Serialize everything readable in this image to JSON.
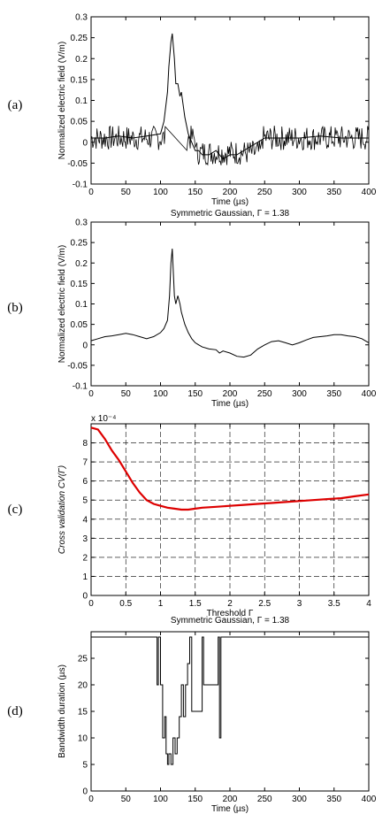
{
  "chart_data": [
    {
      "panel": "(a)",
      "type": "line",
      "title": "",
      "xlabel": "Time (µs)",
      "ylabel": "Normalized electric field (V/m)",
      "xlim": [
        0,
        400
      ],
      "ylim": [
        -0.1,
        0.3
      ],
      "xticks": [
        "0",
        "50",
        "100",
        "150",
        "200",
        "250",
        "300",
        "350",
        "400"
      ],
      "yticks": [
        "-0.1",
        "-0.05",
        "0",
        "0.05",
        "0.1",
        "0.15",
        "0.2",
        "0.25",
        "0.3"
      ],
      "color": "#000000",
      "noise_band": [
        -0.02,
        0.04
      ],
      "x": [
        0,
        20,
        40,
        60,
        80,
        100,
        105,
        110,
        112,
        115,
        117,
        120,
        122,
        125,
        128,
        130,
        135,
        140,
        145,
        150,
        155,
        160,
        170,
        180,
        190,
        200,
        210,
        220,
        230,
        240,
        250,
        270,
        300,
        330,
        360,
        400
      ],
      "values": [
        0.01,
        0.01,
        0.015,
        0.01,
        0.015,
        0.02,
        0.05,
        0.12,
        0.18,
        0.24,
        0.26,
        0.2,
        0.14,
        0.14,
        0.11,
        0.12,
        0.06,
        0.02,
        0.0,
        -0.02,
        -0.02,
        -0.03,
        -0.03,
        -0.02,
        -0.04,
        -0.03,
        -0.03,
        -0.02,
        -0.01,
        0.0,
        0.01,
        0.01,
        0.01,
        0.015,
        0.01,
        0.01
      ]
    },
    {
      "panel": "(b)",
      "type": "line",
      "title": "Symmetric Gaussian, Γ = 1.38",
      "xlabel": "Time (µs)",
      "ylabel": "Normalized electric field (V/m)",
      "xlim": [
        0,
        400
      ],
      "ylim": [
        -0.1,
        0.3
      ],
      "xticks": [
        "0",
        "50",
        "100",
        "150",
        "200",
        "250",
        "300",
        "350",
        "400"
      ],
      "yticks": [
        "-0.1",
        "-0.05",
        "0",
        "0.05",
        "0.1",
        "0.15",
        "0.2",
        "0.25",
        "0.3"
      ],
      "color": "#000000",
      "x": [
        0,
        10,
        20,
        30,
        40,
        50,
        60,
        70,
        80,
        90,
        100,
        105,
        110,
        113,
        115,
        117,
        120,
        122,
        125,
        128,
        130,
        135,
        140,
        145,
        150,
        155,
        160,
        170,
        180,
        185,
        190,
        200,
        210,
        220,
        230,
        240,
        250,
        260,
        270,
        280,
        290,
        300,
        310,
        320,
        330,
        340,
        350,
        360,
        370,
        380,
        390,
        400
      ],
      "values": [
        0.01,
        0.015,
        0.02,
        0.022,
        0.025,
        0.028,
        0.025,
        0.02,
        0.015,
        0.02,
        0.03,
        0.04,
        0.06,
        0.12,
        0.2,
        0.235,
        0.12,
        0.1,
        0.12,
        0.1,
        0.08,
        0.05,
        0.03,
        0.015,
        0.005,
        0.0,
        -0.005,
        -0.01,
        -0.012,
        -0.02,
        -0.015,
        -0.02,
        -0.028,
        -0.03,
        -0.025,
        -0.01,
        0.0,
        0.008,
        0.01,
        0.005,
        0.0,
        0.005,
        0.012,
        0.018,
        0.02,
        0.022,
        0.025,
        0.025,
        0.022,
        0.02,
        0.015,
        0.005
      ]
    },
    {
      "panel": "(c)",
      "type": "line",
      "title": "",
      "xlabel": "Threshold Γ",
      "ylabel": "Cross validation CV(Γ)",
      "y_scale_label": "x 10⁻⁴",
      "xlim": [
        0,
        4
      ],
      "ylim": [
        0,
        9
      ],
      "grid": true,
      "xticks": [
        "0",
        "0.5",
        "1",
        "1.5",
        "2",
        "2.5",
        "3",
        "3.5",
        "4"
      ],
      "yticks": [
        "0",
        "1",
        "2",
        "3",
        "4",
        "5",
        "6",
        "7",
        "8"
      ],
      "color": "#dd0000",
      "x": [
        0,
        0.1,
        0.2,
        0.3,
        0.4,
        0.5,
        0.6,
        0.7,
        0.8,
        0.9,
        1.0,
        1.1,
        1.2,
        1.3,
        1.4,
        1.5,
        1.6,
        1.8,
        2.0,
        2.2,
        2.4,
        2.6,
        2.8,
        3.0,
        3.2,
        3.4,
        3.6,
        3.8,
        4.0
      ],
      "values": [
        8.8,
        8.7,
        8.2,
        7.6,
        7.1,
        6.5,
        5.9,
        5.4,
        5.0,
        4.8,
        4.7,
        4.6,
        4.55,
        4.5,
        4.5,
        4.55,
        4.6,
        4.65,
        4.7,
        4.75,
        4.8,
        4.85,
        4.9,
        4.95,
        5.0,
        5.05,
        5.1,
        5.2,
        5.3
      ]
    },
    {
      "panel": "(d)",
      "type": "line",
      "title": "Symmetric Gaussian, Γ = 1.38",
      "xlabel": "Time (µs)",
      "ylabel": "Bandwidth duration (µs)",
      "xlim": [
        0,
        400
      ],
      "ylim": [
        0,
        30
      ],
      "xticks": [
        "0",
        "50",
        "100",
        "150",
        "200",
        "250",
        "300",
        "350",
        "400"
      ],
      "yticks": [
        "0",
        "5",
        "10",
        "15",
        "20",
        "25"
      ],
      "color": "#000000",
      "x": [
        0,
        95,
        95,
        97,
        97,
        100,
        100,
        103,
        103,
        106,
        106,
        108,
        108,
        110,
        110,
        112,
        112,
        115,
        115,
        118,
        118,
        121,
        121,
        124,
        124,
        127,
        127,
        130,
        130,
        133,
        133,
        136,
        136,
        139,
        139,
        142,
        142,
        145,
        145,
        160,
        160,
        162,
        162,
        183,
        183,
        185,
        185,
        187,
        187,
        400
      ],
      "values": [
        29,
        29,
        20,
        20,
        29,
        29,
        20,
        20,
        10,
        10,
        14,
        14,
        7,
        7,
        5,
        5,
        7,
        7,
        5,
        5,
        10,
        10,
        7,
        7,
        10,
        10,
        14,
        14,
        20,
        20,
        14,
        14,
        20,
        20,
        24,
        24,
        29,
        29,
        15,
        15,
        29,
        29,
        20,
        20,
        29,
        29,
        10,
        10,
        29,
        29
      ]
    }
  ],
  "panel_labels": [
    "(a)",
    "(b)",
    "(c)",
    "(d)"
  ]
}
